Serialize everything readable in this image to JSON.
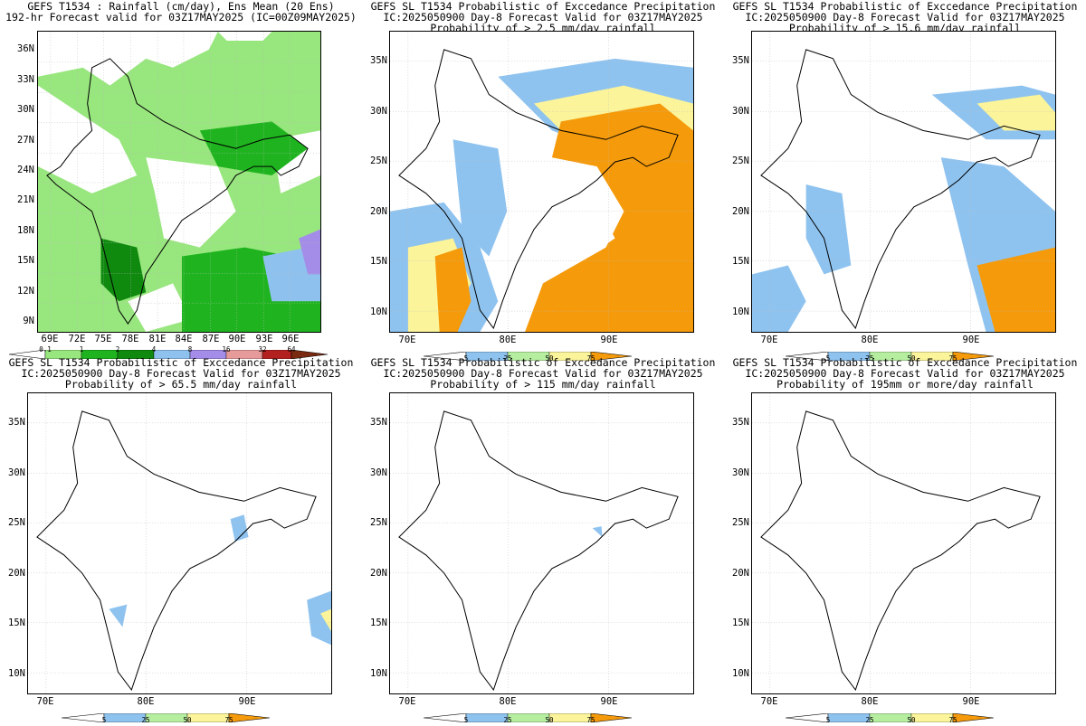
{
  "panels": [
    {
      "title_lines": [
        "GEFS T1534 : Rainfall (cm/day), Ens Mean (20 Ens)",
        "192-hr Forecast valid for 03Z17MAY2025 (IC=00Z09MAY2025)"
      ],
      "lat_labels": [
        "36N",
        "33N",
        "30N",
        "27N",
        "24N",
        "21N",
        "18N",
        "15N",
        "12N",
        "9N"
      ],
      "lon_labels": [
        "69E",
        "72E",
        "75E",
        "78E",
        "81E",
        "84E",
        "87E",
        "90E",
        "93E",
        "96E"
      ],
      "legend_labels": [
        "0.1",
        "1",
        "2",
        "4",
        "8",
        "16",
        "32",
        "64"
      ]
    },
    {
      "title_lines": [
        "GEFS SL T1534 Probabilistic of Exccedance Precipitation",
        "IC:2025050900 Day-8 Forecast Valid for 03Z17MAY2025",
        "Probability of > 2.5 mm/day rainfall"
      ],
      "lat_labels": [
        "35N",
        "30N",
        "25N",
        "20N",
        "15N",
        "10N"
      ],
      "lon_labels": [
        "70E",
        "80E",
        "90E"
      ],
      "legend_labels": [
        "5",
        "25",
        "50",
        "75"
      ]
    },
    {
      "title_lines": [
        "GEFS SL T1534 Probabilistic of Exccedance Precipitation",
        "IC:2025050900 Day-8 Forecast Valid for 03Z17MAY2025",
        "Probability of > 15.6 mm/day rainfall"
      ],
      "lat_labels": [
        "35N",
        "30N",
        "25N",
        "20N",
        "15N",
        "10N"
      ],
      "lon_labels": [
        "70E",
        "80E",
        "90E"
      ],
      "legend_labels": [
        "5",
        "25",
        "50",
        "75"
      ]
    },
    {
      "title_lines": [
        "GEFS SL T1534 Probabilistic of Exccedance Precipitation",
        "IC:2025050900 Day-8 Forecast Valid for 03Z17MAY2025",
        "Probability of > 65.5 mm/day rainfall"
      ],
      "lat_labels": [
        "35N",
        "30N",
        "25N",
        "20N",
        "15N",
        "10N"
      ],
      "lon_labels": [
        "70E",
        "80E",
        "90E"
      ],
      "legend_labels": [
        "5",
        "25",
        "50",
        "75"
      ]
    },
    {
      "title_lines": [
        "GEFS SL T1534 Probabilistic of Exccedance Precipitation",
        "IC:2025050900 Day-8 Forecast Valid for 03Z17MAY2025",
        "Probability of > 115 mm/day rainfall"
      ],
      "lat_labels": [
        "35N",
        "30N",
        "25N",
        "20N",
        "15N",
        "10N"
      ],
      "lon_labels": [
        "70E",
        "80E",
        "90E"
      ],
      "legend_labels": [
        "5",
        "25",
        "50",
        "75"
      ]
    },
    {
      "title_lines": [
        "GEFS SL T1534 Probabilistic of Exccedance Precipitation",
        "IC:2025050900 Day-8 Forecast Valid for 03Z17MAY2025",
        "Probability of 195mm or more/day rainfall"
      ],
      "lat_labels": [
        "35N",
        "30N",
        "25N",
        "20N",
        "15N",
        "10N"
      ],
      "lon_labels": [
        "70E",
        "80E",
        "90E"
      ],
      "legend_labels": [
        "5",
        "25",
        "50",
        "75"
      ]
    }
  ],
  "colors": {
    "rain_scale": [
      "#ffffff",
      "#98e67e",
      "#1fb41f",
      "#0f8a0f",
      "#8fc1ef",
      "#a38de8",
      "#e69a9a",
      "#b22020",
      "#7a2a10"
    ],
    "prob_scale": [
      "#ffffff",
      "#8fc3ef",
      "#b6eea0",
      "#fbf49b",
      "#f59a0a"
    ]
  }
}
